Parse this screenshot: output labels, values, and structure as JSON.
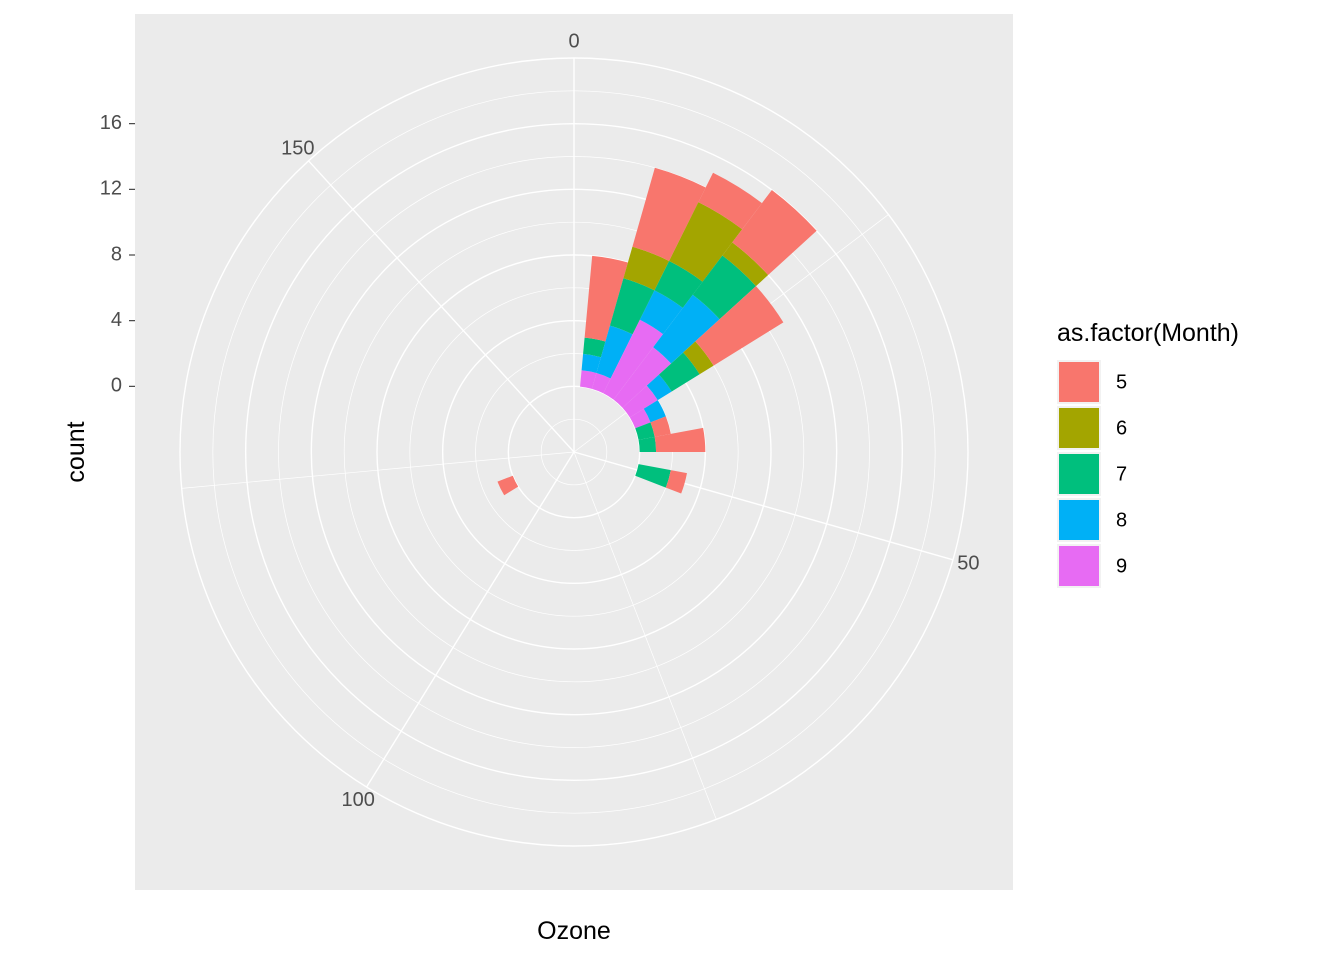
{
  "chart_data": {
    "type": "bar",
    "coord": "polar",
    "stacked": true,
    "xlabel": "Ozone",
    "ylabel": "count",
    "x_breaks": [
      0,
      50,
      100,
      150
    ],
    "x_range": [
      0,
      170
    ],
    "bin_width": 5,
    "y_breaks": [
      0,
      4,
      8,
      12,
      16
    ],
    "y_range": [
      -4,
      20
    ],
    "grid": true,
    "panel_background": "#EBEBEB",
    "legend": {
      "title": "as.factor(Month)",
      "position": "right",
      "items": [
        {
          "label": "5",
          "color": "#F8766D"
        },
        {
          "label": "6",
          "color": "#A3A500"
        },
        {
          "label": "7",
          "color": "#00BF7D"
        },
        {
          "label": "8",
          "color": "#00B0F6"
        },
        {
          "label": "9",
          "color": "#E76BF3"
        }
      ]
    },
    "bins_x": [
      5,
      10,
      15,
      20,
      25,
      30,
      35,
      40,
      45,
      50,
      55,
      60,
      65,
      70,
      75,
      80,
      85,
      90,
      95,
      100,
      105,
      110,
      115,
      120,
      125,
      130,
      135,
      140,
      145,
      150,
      155,
      160,
      165
    ],
    "series": [
      {
        "name": "5",
        "values": [
          5,
          5,
          2,
          4,
          5,
          0,
          1,
          3,
          0,
          1,
          0,
          0,
          0,
          0,
          0,
          0,
          0,
          0,
          0,
          0,
          0,
          0,
          1,
          0,
          0,
          0,
          0,
          0,
          0,
          0,
          0,
          0,
          0
        ]
      },
      {
        "name": "6",
        "values": [
          0,
          2,
          4,
          1,
          1,
          0,
          0,
          0,
          0,
          0,
          0,
          0,
          0,
          0,
          0,
          0,
          0,
          0,
          0,
          0,
          0,
          0,
          0,
          0,
          0,
          0,
          0,
          0,
          0,
          0,
          0,
          0,
          0
        ]
      },
      {
        "name": "7",
        "values": [
          1,
          3,
          2,
          3,
          2,
          0,
          1,
          1,
          0,
          2,
          0,
          0,
          0,
          0,
          0,
          0,
          0,
          0,
          0,
          0,
          0,
          0,
          0,
          0,
          0,
          0,
          0,
          0,
          0,
          0,
          0,
          0,
          0
        ]
      },
      {
        "name": "8",
        "values": [
          1,
          3,
          2,
          4,
          1,
          1,
          0,
          0,
          0,
          0,
          0,
          0,
          0,
          0,
          0,
          0,
          0,
          0,
          0,
          0,
          0,
          0,
          0,
          0,
          0,
          0,
          0,
          0,
          0,
          0,
          0,
          0,
          0
        ]
      },
      {
        "name": "9",
        "values": [
          1,
          1,
          5,
          4,
          2,
          1,
          0,
          0,
          0,
          0,
          0,
          0,
          0,
          0,
          0,
          0,
          0,
          0,
          0,
          0,
          0,
          0,
          0,
          0,
          0,
          0,
          0,
          0,
          0,
          0,
          0,
          0,
          0
        ]
      }
    ]
  }
}
